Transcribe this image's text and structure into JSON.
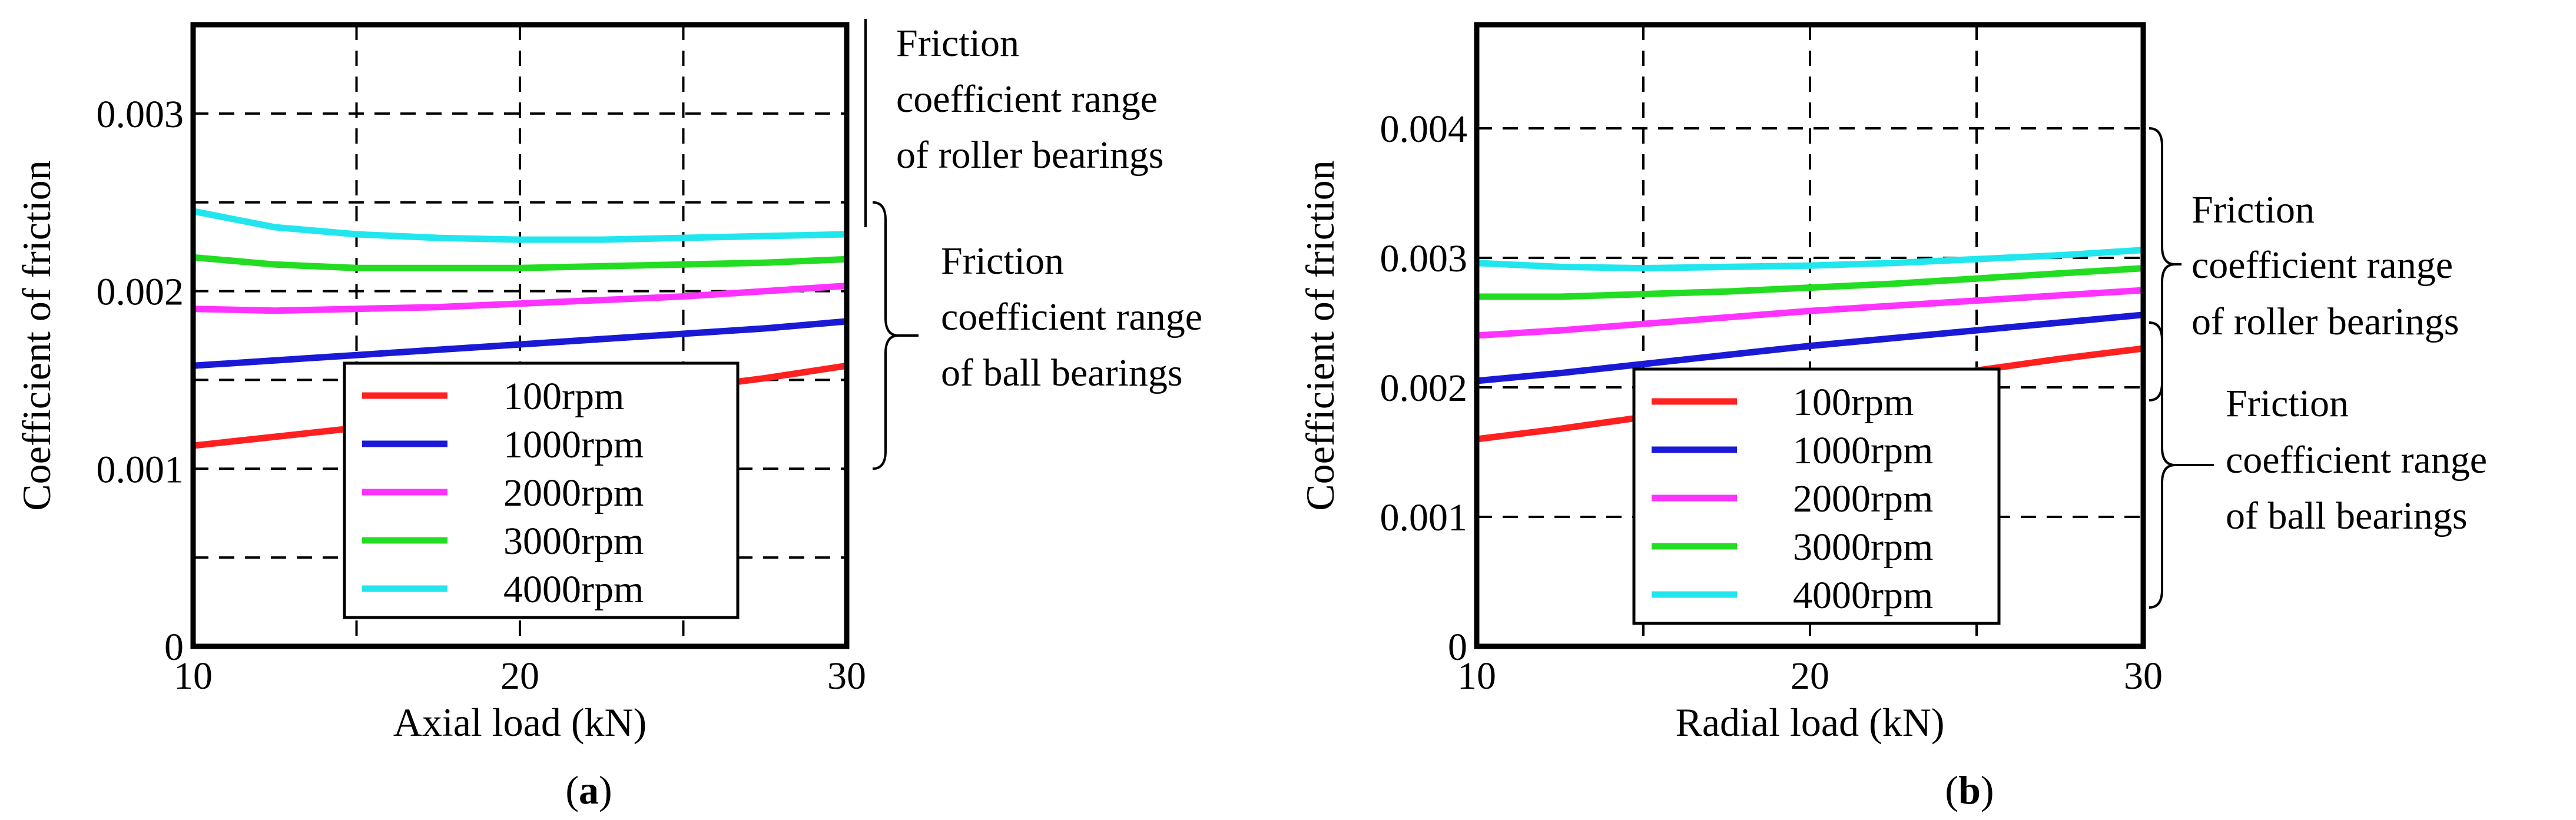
{
  "colors": {
    "100rpm": "#ff2020",
    "1000rpm": "#1a1ad6",
    "2000rpm": "#ff33ff",
    "3000rpm": "#22dd22",
    "4000rpm": "#22e6ee",
    "grid": "#000000"
  },
  "chart_data": [
    {
      "type": "line",
      "panel": "a",
      "panel_label_parts": [
        "(",
        "a",
        ")"
      ],
      "xlabel": "Axial load (kN)",
      "ylabel": "Coefficient of friction",
      "xlim": [
        10,
        30
      ],
      "ylim": [
        0,
        0.0035
      ],
      "xticks": [
        10,
        20,
        30
      ],
      "xtick_labels": [
        "10",
        "20",
        "30"
      ],
      "yticks": [
        0,
        0.001,
        0.002,
        0.003
      ],
      "ytick_labels": [
        "0",
        "0.001",
        "0.002",
        "0.003"
      ],
      "xgrid": [
        15,
        20,
        25
      ],
      "ygrid": [
        0.0005,
        0.001,
        0.0015,
        0.002,
        0.0025,
        0.003
      ],
      "grid": true,
      "x": [
        10,
        12.5,
        15,
        17.5,
        20,
        22.5,
        25,
        27.5,
        30
      ],
      "series": [
        {
          "name": "100rpm",
          "color_key": "100rpm",
          "values": [
            0.00113,
            0.00118,
            0.00123,
            0.00128,
            0.00133,
            0.00139,
            0.00145,
            0.00151,
            0.00158
          ]
        },
        {
          "name": "1000rpm",
          "color_key": "1000rpm",
          "values": [
            0.00158,
            0.00161,
            0.00164,
            0.00167,
            0.0017,
            0.00173,
            0.00176,
            0.00179,
            0.00183
          ]
        },
        {
          "name": "2000rpm",
          "color_key": "2000rpm",
          "values": [
            0.0019,
            0.00189,
            0.0019,
            0.00191,
            0.00193,
            0.00195,
            0.00197,
            0.002,
            0.00203
          ]
        },
        {
          "name": "3000rpm",
          "color_key": "3000rpm",
          "values": [
            0.00219,
            0.00215,
            0.00213,
            0.00213,
            0.00213,
            0.00214,
            0.00215,
            0.00216,
            0.00218
          ]
        },
        {
          "name": "4000rpm",
          "color_key": "4000rpm",
          "values": [
            0.00245,
            0.00236,
            0.00232,
            0.0023,
            0.00229,
            0.00229,
            0.0023,
            0.00231,
            0.00232
          ]
        }
      ],
      "annotations": [
        {
          "id": "roller",
          "lines": [
            "Friction",
            "coefficient range",
            "of roller bearings"
          ],
          "range": [
            0.0025,
            0.0035
          ]
        },
        {
          "id": "ball",
          "lines": [
            "Friction",
            "coefficient range",
            "of ball bearings"
          ],
          "range": [
            0.001,
            0.0025
          ]
        }
      ]
    },
    {
      "type": "line",
      "panel": "b",
      "panel_label_parts": [
        "(",
        "b",
        ")"
      ],
      "xlabel": "Radial load (kN)",
      "ylabel": "Coefficient of friction",
      "xlim": [
        10,
        30
      ],
      "ylim": [
        0,
        0.0048
      ],
      "xticks": [
        10,
        20,
        30
      ],
      "xtick_labels": [
        "10",
        "20",
        "30"
      ],
      "yticks": [
        0,
        0.001,
        0.002,
        0.003,
        0.004
      ],
      "ytick_labels": [
        "0",
        "0.001",
        "0.002",
        "0.003",
        "0.004"
      ],
      "xgrid": [
        15,
        20,
        25
      ],
      "ygrid": [
        0.001,
        0.002,
        0.003,
        0.004
      ],
      "grid": true,
      "x": [
        10,
        12.5,
        15,
        17.5,
        20,
        22.5,
        25,
        27.5,
        30
      ],
      "series": [
        {
          "name": "100rpm",
          "color_key": "100rpm",
          "values": [
            0.0016,
            0.00168,
            0.00177,
            0.00186,
            0.00195,
            0.00204,
            0.00213,
            0.00222,
            0.0023
          ]
        },
        {
          "name": "1000rpm",
          "color_key": "1000rpm",
          "values": [
            0.00205,
            0.00211,
            0.00218,
            0.00225,
            0.00232,
            0.00238,
            0.00244,
            0.0025,
            0.00256
          ]
        },
        {
          "name": "2000rpm",
          "color_key": "2000rpm",
          "values": [
            0.0024,
            0.00244,
            0.00249,
            0.00254,
            0.00259,
            0.00263,
            0.00267,
            0.00271,
            0.00275
          ]
        },
        {
          "name": "3000rpm",
          "color_key": "3000rpm",
          "values": [
            0.0027,
            0.0027,
            0.00272,
            0.00274,
            0.00277,
            0.0028,
            0.00284,
            0.00288,
            0.00292
          ]
        },
        {
          "name": "4000rpm",
          "color_key": "4000rpm",
          "values": [
            0.00296,
            0.00293,
            0.00292,
            0.00293,
            0.00294,
            0.00296,
            0.00299,
            0.00302,
            0.00306
          ]
        }
      ],
      "annotations": [
        {
          "id": "roller",
          "lines": [
            "Friction",
            "coefficient range",
            "of roller bearings"
          ],
          "range": [
            0.0019,
            0.004
          ]
        },
        {
          "id": "ball",
          "lines": [
            "Friction",
            "coefficient range",
            "of ball bearings"
          ],
          "range": [
            0.0003,
            0.0025
          ]
        }
      ]
    }
  ]
}
